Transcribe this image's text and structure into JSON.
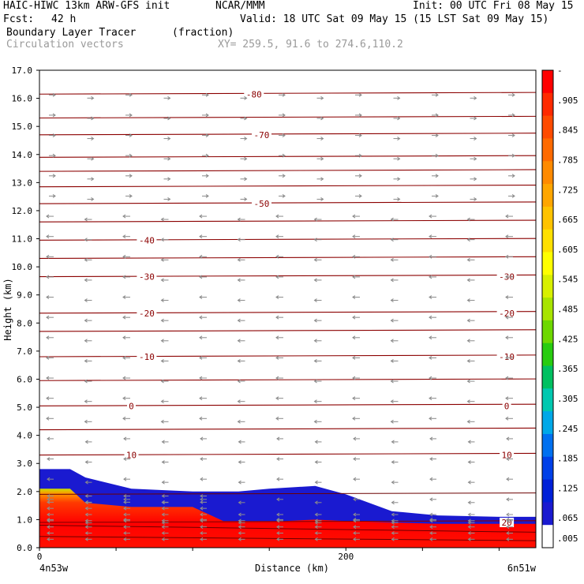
{
  "header": {
    "model": "HAIC-HIWC 13km ARW-GFS init",
    "org": "NCAR/MMM",
    "init": "Init: 00 UTC Fri 08 May 15",
    "fcst_label": "Fcst:",
    "fcst_value": "42 h",
    "valid": "Valid: 18 UTC Sat 09 May 15 (15 LST Sat 09 May 15)",
    "field": "Boundary Layer Tracer",
    "field_units": "(fraction)",
    "overlay": "Circulation vectors",
    "xy": "XY= 259.5, 91.6 to 274.6,110.2"
  },
  "chart_data": {
    "type": "heatmap",
    "title": "Boundary Layer Tracer",
    "ylabel": "Height (km)",
    "xlabel": "Distance (km)",
    "x_start_label": "4n53w",
    "x_end_label": "6n51w",
    "xlim": [
      0,
      324
    ],
    "ylim": [
      0,
      17
    ],
    "x_ticks": [
      "0",
      "200"
    ],
    "y_ticks": [
      "0.0",
      "1.0",
      "2.0",
      "3.0",
      "4.0",
      "5.0",
      "6.0",
      "7.0",
      "8.0",
      "9.0",
      "10.0",
      "11.0",
      "12.0",
      "13.0",
      "14.0",
      "15.0",
      "16.0",
      "17.0"
    ],
    "colorbar_labels": [
      "-",
      ".905",
      ".845",
      ".785",
      ".725",
      ".665",
      ".605",
      ".545",
      ".485",
      ".425",
      ".365",
      ".305",
      ".245",
      ".185",
      ".125",
      ".065",
      ".005"
    ],
    "colorbar_colors": [
      "#ff0000",
      "#ff2a00",
      "#ff4b00",
      "#ff6a00",
      "#ff8a00",
      "#ffa600",
      "#ffc300",
      "#ffe000",
      "#ffff00",
      "#d8f000",
      "#a8e400",
      "#6ed800",
      "#28cc10",
      "#00c060",
      "#00c8b0",
      "#00a8e8",
      "#0070f0",
      "#0040e8",
      "#0020d8",
      "#1a1ad0",
      "#ffffff"
    ],
    "tracer_top": {
      "x": [
        0,
        20,
        30,
        60,
        100,
        130,
        150,
        180,
        200,
        230,
        260,
        300,
        324
      ],
      "y": [
        2.8,
        2.8,
        2.5,
        2.1,
        2.0,
        2.0,
        2.1,
        2.2,
        1.9,
        1.3,
        1.15,
        1.1,
        1.1
      ]
    },
    "core_top": {
      "x": [
        0,
        20,
        30,
        60,
        100,
        110,
        120,
        160,
        180,
        200,
        230,
        260,
        300,
        324
      ],
      "y": [
        2.1,
        2.1,
        1.6,
        1.45,
        1.45,
        1.2,
        0.95,
        0.95,
        1.0,
        0.95,
        0.9,
        0.85,
        0.85,
        0.85
      ]
    },
    "isotherms": [
      {
        "label": "-80",
        "y": 16.15,
        "label_x": 140
      },
      {
        "label": "-70",
        "y": 14.7,
        "label_x": 145
      },
      {
        "label": "-50",
        "y": 12.25,
        "label_x": 145
      },
      {
        "label": "-40",
        "y": 10.95,
        "label_x": 70
      },
      {
        "label": "-30",
        "y": 9.65,
        "label_x": 70
      },
      {
        "label": "-30",
        "y": 9.65,
        "label_x": 305
      },
      {
        "label": "-20",
        "y": 8.35,
        "label_x": 70
      },
      {
        "label": "-20",
        "y": 8.35,
        "label_x": 305
      },
      {
        "label": "-10",
        "y": 6.8,
        "label_x": 70
      },
      {
        "label": "-10",
        "y": 6.8,
        "label_x": 305
      },
      {
        "label": "0",
        "y": 5.05,
        "label_x": 60
      },
      {
        "label": "0",
        "y": 5.05,
        "label_x": 305
      },
      {
        "label": "10",
        "y": 3.3,
        "label_x": 60
      },
      {
        "label": "10",
        "y": 3.3,
        "label_x": 305
      },
      {
        "label": "20",
        "y": 0.9,
        "label_x": 305
      }
    ],
    "extra_contours": [
      15.3,
      13.9,
      13.4,
      12.85,
      11.6,
      10.3,
      7.7,
      5.95,
      4.2
    ]
  }
}
